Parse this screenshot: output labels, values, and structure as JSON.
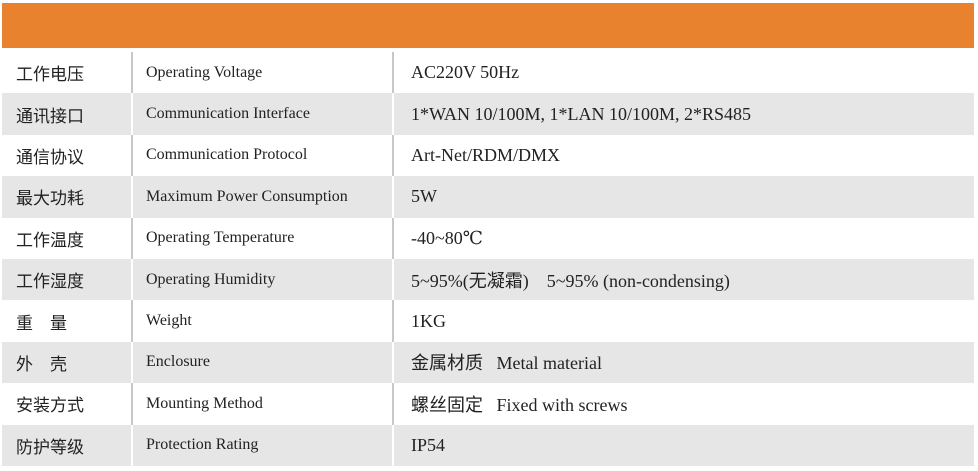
{
  "table": {
    "rows": [
      [
        "工作电压",
        "Operating Voltage",
        "AC220V 50Hz"
      ],
      [
        "通讯接口",
        "Communication Interface",
        "1*WAN 10/100M, 1*LAN 10/100M, 2*RS485"
      ],
      [
        "通信协议",
        "Communication Protocol",
        "Art-Net/RDM/DMX"
      ],
      [
        "最大功耗",
        "Maximum Power Consumption",
        "5W"
      ],
      [
        "工作温度",
        "Operating Temperature",
        "-40~80℃"
      ],
      [
        "工作湿度",
        "Operating Humidity",
        "5~95%(无凝霜)    5~95% (non-condensing)"
      ],
      [
        "重　量",
        "Weight",
        "1KG"
      ],
      [
        "外　壳",
        "Enclosure",
        "金属材质   Metal material"
      ],
      [
        "安装方式",
        "Mounting Method",
        "螺丝固定   Fixed with screws"
      ],
      [
        "防护等级",
        "Protection Rating",
        "IP54"
      ]
    ]
  }
}
